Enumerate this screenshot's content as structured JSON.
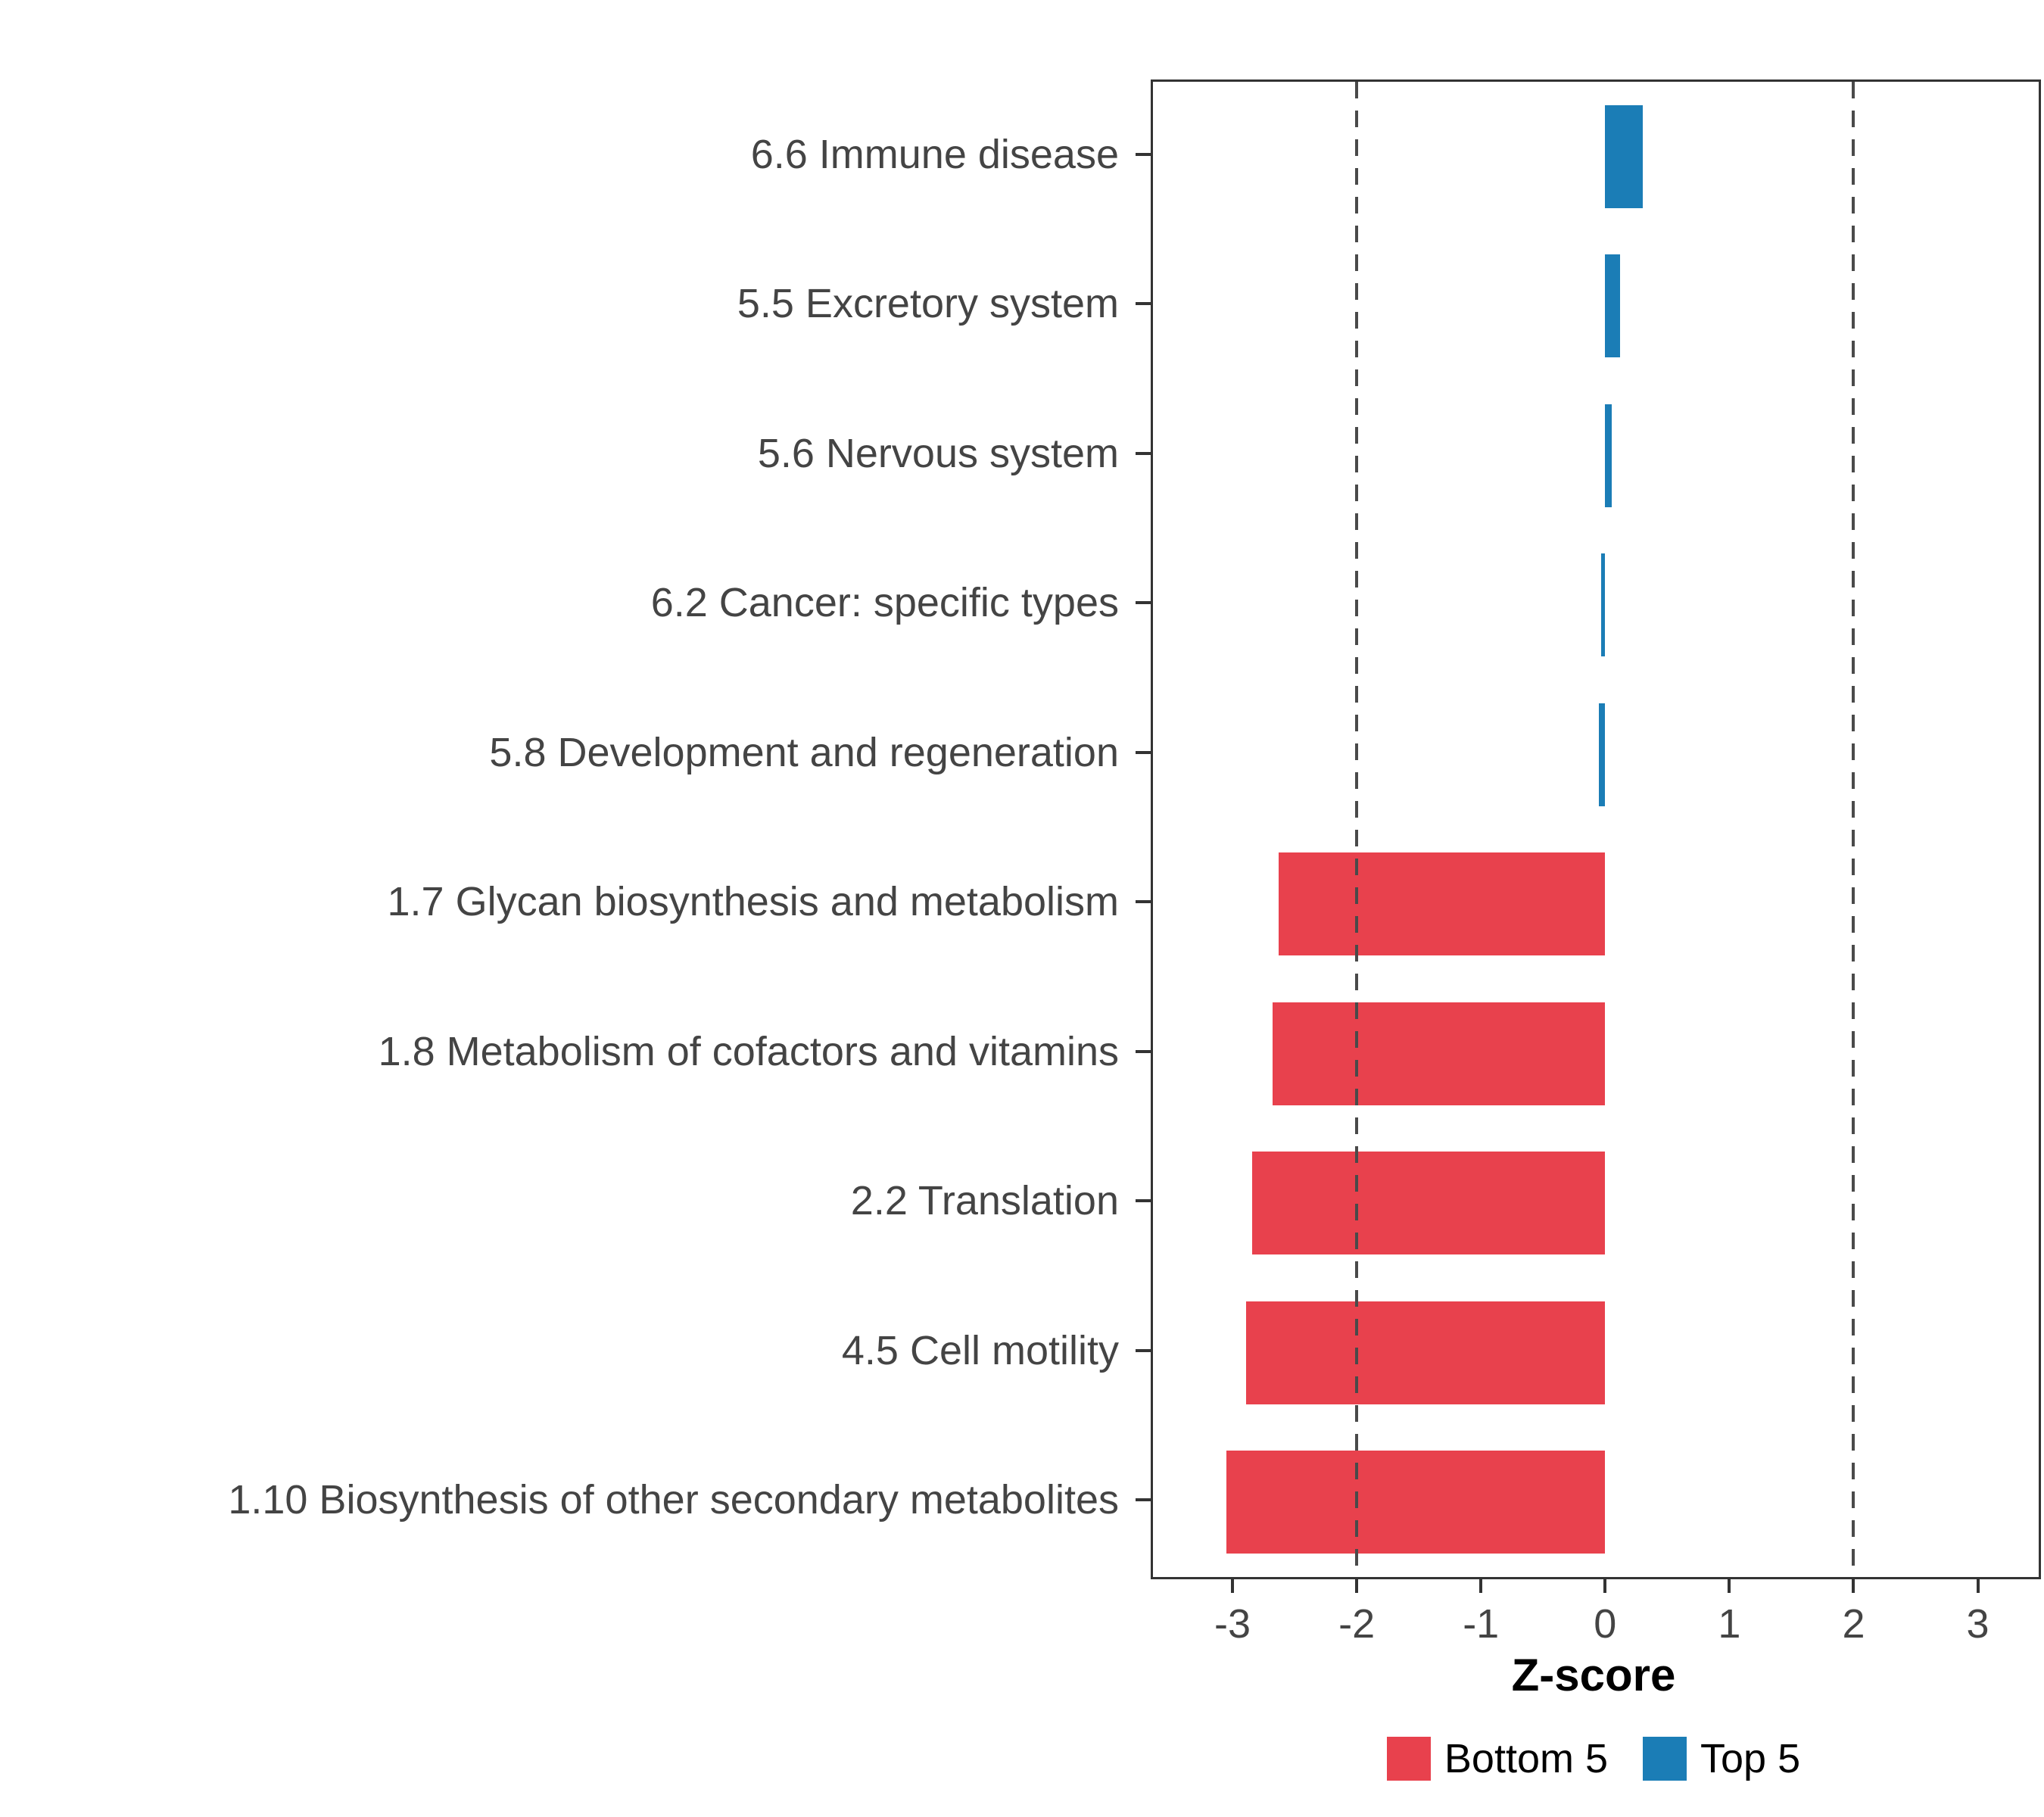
{
  "chart_data": {
    "type": "bar",
    "orientation": "horizontal",
    "title": "",
    "xlabel": "Z-score",
    "ylabel": "",
    "xlim": [
      -3.64,
      3.49
    ],
    "xticks": [
      "-3",
      "-2",
      "-1",
      "0",
      "1",
      "2",
      "3"
    ],
    "xtick_values": [
      -3,
      -2,
      -1,
      0,
      1,
      2,
      3
    ],
    "dashed_lines": [
      -2,
      2
    ],
    "grid": false,
    "legend_position": "bottom",
    "categories": [
      "6.6 Immune disease",
      "5.5 Excretory system",
      "5.6 Nervous system",
      "6.2 Cancer: specific types",
      "5.8 Development and regeneration",
      "1.7 Glycan biosynthesis and metabolism",
      "1.8 Metabolism of cofactors and vitamins",
      "2.2 Translation",
      "4.5 Cell motility",
      "1.10 Biosynthesis of other secondary metabolites"
    ],
    "values": [
      0.3,
      0.12,
      0.05,
      -0.03,
      -0.05,
      -2.63,
      -2.68,
      -2.84,
      -2.89,
      -3.05
    ],
    "groups": [
      "Top 5",
      "Top 5",
      "Top 5",
      "Top 5",
      "Top 5",
      "Bottom 5",
      "Bottom 5",
      "Bottom 5",
      "Bottom 5",
      "Bottom 5"
    ],
    "colors": {
      "Bottom 5": "#E8414D",
      "Top 5": "#1B7DB6"
    },
    "legend": [
      {
        "label": "Bottom 5",
        "color": "#E8414D"
      },
      {
        "label": "Top 5",
        "color": "#1B7DB6"
      }
    ]
  },
  "style_colors": {
    "panel_border": "#333333",
    "axis_text": "#444444",
    "dashed_line": "#4a4a4a",
    "background": "#ffffff"
  }
}
